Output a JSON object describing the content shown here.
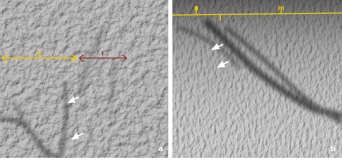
{
  "panels": [
    {
      "label": "a",
      "annotations": [
        "II",
        "I"
      ]
    },
    {
      "label": "b",
      "annotations": [
        "II",
        "III",
        "I"
      ]
    }
  ]
}
